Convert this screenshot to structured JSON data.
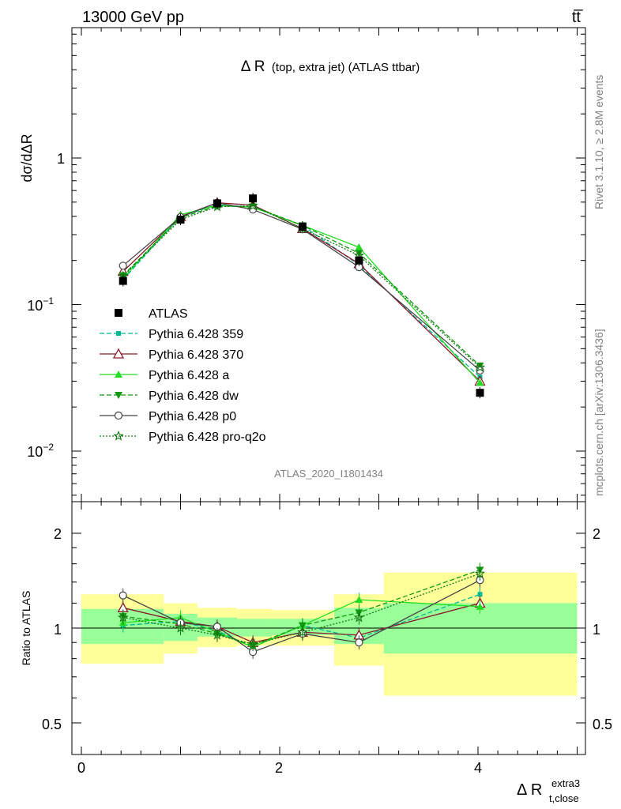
{
  "header": {
    "left": "13000 GeV pp",
    "right": "tt̅"
  },
  "side_labels": {
    "rivet": "Rivet 3.1.10, ≥ 2.8M events",
    "mcplots": "mcplots.cern.ch [arXiv:1306.3436]"
  },
  "main": {
    "title_big": "Δ R",
    "title_small": "(top, extra jet) (ATLAS ttbar)",
    "analysis_id": "ATLAS_2020_I1801434",
    "ylabel": "dσ/dΔR",
    "yticks": [
      {
        "base": "1",
        "exp": ""
      },
      {
        "base": "10",
        "exp": "−1"
      },
      {
        "base": "10",
        "exp": "−2"
      }
    ]
  },
  "ratio": {
    "ylabel": "Ratio to ATLAS",
    "ytick_labels": [
      "2",
      "1",
      "0.5"
    ],
    "xtick_labels": [
      "0",
      "2",
      "4"
    ]
  },
  "xlabel": {
    "main": "Δ R",
    "sup": "extra3",
    "sub": "t,close"
  },
  "colors": {
    "p359": "#00b894",
    "p370": "#8b1a2b",
    "pa": "#22dd22",
    "pdw": "#119911",
    "pp0": "#444444",
    "pq2o": "#117711",
    "band_yellow": "#ffff99",
    "band_green": "#99ff99"
  },
  "chart_data": {
    "type": "line",
    "xlim": [
      -0.2,
      5.0
    ],
    "ylim_main": [
      0.005,
      8
    ],
    "ylim_ratio": [
      0.4,
      2.4
    ],
    "yscale_main": "log",
    "yscale_ratio": "log",
    "x": [
      0.42,
      1.0,
      1.37,
      1.73,
      2.23,
      2.8,
      4.02
    ],
    "x_edges": [
      0.0,
      0.83,
      1.17,
      1.57,
      1.92,
      2.55,
      3.05,
      5.0
    ],
    "data": {
      "name": "ATLAS",
      "values": [
        0.145,
        0.38,
        0.49,
        0.53,
        0.34,
        0.2,
        0.025
      ]
    },
    "bands": {
      "yellow": [
        [
          0.77,
          1.28
        ],
        [
          0.83,
          1.2
        ],
        [
          0.87,
          1.16
        ],
        [
          0.88,
          1.15
        ],
        [
          0.88,
          1.14
        ],
        [
          0.76,
          1.28
        ],
        [
          0.61,
          1.5
        ]
      ],
      "green": [
        [
          0.89,
          1.15
        ],
        [
          0.91,
          1.11
        ],
        [
          0.94,
          1.08
        ],
        [
          0.94,
          1.07
        ],
        [
          0.95,
          1.07
        ],
        [
          0.89,
          1.16
        ],
        [
          0.83,
          1.2
        ]
      ]
    },
    "series": [
      {
        "name": "Pythia 6.428 359",
        "key": "p359",
        "marker": "square-small",
        "dash": "6,3",
        "ratio": [
          1.02,
          1.05,
          0.98,
          0.87,
          1.02,
          0.93,
          1.28
        ]
      },
      {
        "name": "Pythia 6.428 370",
        "key": "p370",
        "marker": "triangle-open",
        "dash": "",
        "ratio": [
          1.16,
          1.05,
          1.01,
          0.9,
          0.97,
          0.95,
          1.2
        ]
      },
      {
        "name": "Pythia 6.428 a",
        "key": "pa",
        "marker": "triangle-up",
        "dash": "",
        "ratio": [
          1.04,
          1.08,
          0.97,
          0.87,
          1.02,
          1.23,
          1.17
        ]
      },
      {
        "name": "Pythia 6.428 dw",
        "key": "pdw",
        "marker": "triangle-down",
        "dash": "6,3",
        "ratio": [
          1.09,
          1.03,
          0.96,
          0.88,
          1.02,
          1.12,
          1.53
        ]
      },
      {
        "name": "Pythia 6.428 p0",
        "key": "pp0",
        "marker": "circle-open",
        "dash": "",
        "ratio": [
          1.27,
          1.04,
          1.01,
          0.84,
          0.96,
          0.9,
          1.42
        ]
      },
      {
        "name": "Pythia 6.428 pro-q2o",
        "key": "pq2o",
        "marker": "star",
        "dash": "2,2",
        "ratio": [
          1.08,
          1.0,
          0.95,
          0.89,
          0.97,
          1.08,
          1.49
        ]
      }
    ]
  }
}
